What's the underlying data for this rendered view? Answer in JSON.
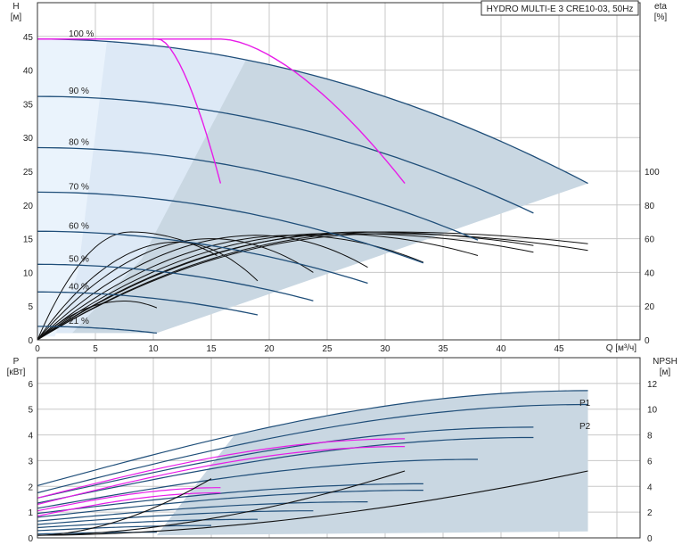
{
  "title": "HYDRO MULTI-E 3 CRE10-03, 50Hz",
  "colors": {
    "curve": "#1f4e79",
    "efficiency": "#111111",
    "highlight": "#e81ce8",
    "region": "#c9d7e2",
    "region_light": "#dde9f6",
    "region_lighter": "#eaf3fc"
  },
  "chart_data": [
    {
      "type": "line",
      "name": "QH",
      "xlabel": "Q [м³/ч]",
      "ylabel_left": [
        "H",
        "[м]"
      ],
      "ylabel_right": [
        "eta",
        "[%]"
      ],
      "xlim": [
        0,
        52
      ],
      "ylim": [
        0,
        50
      ],
      "xticks": [
        0,
        5,
        10,
        15,
        20,
        25,
        30,
        35,
        40,
        45
      ],
      "yticks": [
        0,
        5,
        10,
        15,
        20,
        25,
        30,
        35,
        40,
        45
      ],
      "eta_lim": [
        0,
        200
      ],
      "eta_ticks": [
        0,
        20,
        40,
        60,
        80,
        100
      ],
      "speed_curves": [
        {
          "label": "100 %",
          "h0": 44.6,
          "qmax": 47.5,
          "hend": 23.2
        },
        {
          "label": "90 %",
          "h0": 36.1,
          "qmax": 42.8,
          "hend": 18.8
        },
        {
          "label": "80 %",
          "h0": 28.5,
          "qmax": 38.0,
          "hend": 14.8
        },
        {
          "label": "70 %",
          "h0": 21.9,
          "qmax": 33.3,
          "hend": 11.4
        },
        {
          "label": "60 %",
          "h0": 16.1,
          "qmax": 28.5,
          "hend": 8.4
        },
        {
          "label": "50 %",
          "h0": 11.2,
          "qmax": 23.8,
          "hend": 5.8
        },
        {
          "label": "40 %",
          "h0": 7.1,
          "qmax": 19.0,
          "hend": 3.7
        },
        {
          "label": "21 %",
          "h0": 2.0,
          "qmax": 10.3,
          "hend": 1.0
        }
      ],
      "highlight_curves": [
        {
          "h0": 44.6,
          "qstart": 10.5,
          "qmax": 15.8,
          "hend": 23.2
        },
        {
          "h0": 44.6,
          "qstart": 16.0,
          "qmax": 31.7,
          "hend": 23.2
        }
      ],
      "efficiency_curves": [
        {
          "qmax": 47.5,
          "peak": 64,
          "qpeak": 30.0,
          "eend": 57
        },
        {
          "qmax": 47.5,
          "peak": 63,
          "qpeak": 30.0,
          "eend": 53
        },
        {
          "qmax": 42.8,
          "peak": 64,
          "qpeak": 28.0,
          "eend": 56
        },
        {
          "qmax": 42.8,
          "peak": 63,
          "qpeak": 27.0,
          "eend": 52
        },
        {
          "qmax": 38.0,
          "peak": 63,
          "qpeak": 25.0,
          "eend": 50
        },
        {
          "qmax": 33.3,
          "peak": 62,
          "qpeak": 22.0,
          "eend": 46
        },
        {
          "qmax": 28.5,
          "peak": 62,
          "qpeak": 19.0,
          "eend": 43
        },
        {
          "qmax": 23.8,
          "peak": 60,
          "qpeak": 15.0,
          "eend": 40
        },
        {
          "qmax": 19.0,
          "peak": 58,
          "qpeak": 12.0,
          "eend": 35
        },
        {
          "qmax": 15.5,
          "peak": 64,
          "qpeak": 8.0,
          "eend": 50
        },
        {
          "qmax": 10.3,
          "peak": 23,
          "qpeak": 7.5,
          "eend": 19
        }
      ]
    },
    {
      "type": "line",
      "name": "Power and NPSH",
      "xlabel": "",
      "ylabel_left": [
        "P",
        "[кВт]"
      ],
      "ylabel_right": [
        "NPSH",
        "[м]"
      ],
      "xlim": [
        0,
        52
      ],
      "ylim": [
        0,
        7
      ],
      "yticks": [
        0,
        1,
        2,
        3,
        4,
        5,
        6
      ],
      "npsh_lim": [
        0,
        14
      ],
      "npsh_ticks": [
        0,
        2,
        4,
        6,
        8,
        10,
        12
      ],
      "series_labels": [
        "P1",
        "P2"
      ],
      "power_curves": [
        {
          "p0": 2.03,
          "qmax": 47.5,
          "pmax": 5.72
        },
        {
          "p0": 1.75,
          "qmax": 47.5,
          "pmax": 5.18
        },
        {
          "p0": 1.55,
          "qmax": 42.8,
          "pmax": 4.3
        },
        {
          "p0": 1.35,
          "qmax": 42.8,
          "pmax": 3.9
        },
        {
          "p0": 1.15,
          "qmax": 38.0,
          "pmax": 3.05
        },
        {
          "p0": 0.95,
          "qmax": 33.3,
          "pmax": 2.1
        },
        {
          "p0": 0.8,
          "qmax": 33.3,
          "pmax": 1.85
        },
        {
          "p0": 0.65,
          "qmax": 28.5,
          "pmax": 1.4
        },
        {
          "p0": 0.52,
          "qmax": 23.8,
          "pmax": 1.05
        },
        {
          "p0": 0.4,
          "qmax": 19.0,
          "pmax": 0.72
        },
        {
          "p0": 0.28,
          "qmax": 15.0,
          "pmax": 0.48
        },
        {
          "p0": 0.15,
          "qmax": 10.3,
          "pmax": 0.22
        }
      ],
      "highlight_power": [
        {
          "p0": 1.55,
          "qmax": 31.7,
          "pmax": 3.85
        },
        {
          "p0": 1.3,
          "qmax": 31.7,
          "pmax": 3.55
        },
        {
          "p0": 1.05,
          "qmax": 15.8,
          "pmax": 1.95
        },
        {
          "p0": 0.85,
          "qmax": 15.8,
          "pmax": 1.75
        }
      ],
      "npsh_curves": [
        {
          "qmax": 47.5,
          "nmax": 5.2
        },
        {
          "qmax": 31.7,
          "nmax": 5.2
        },
        {
          "qmax": 15.0,
          "nmax": 4.6
        }
      ]
    }
  ]
}
